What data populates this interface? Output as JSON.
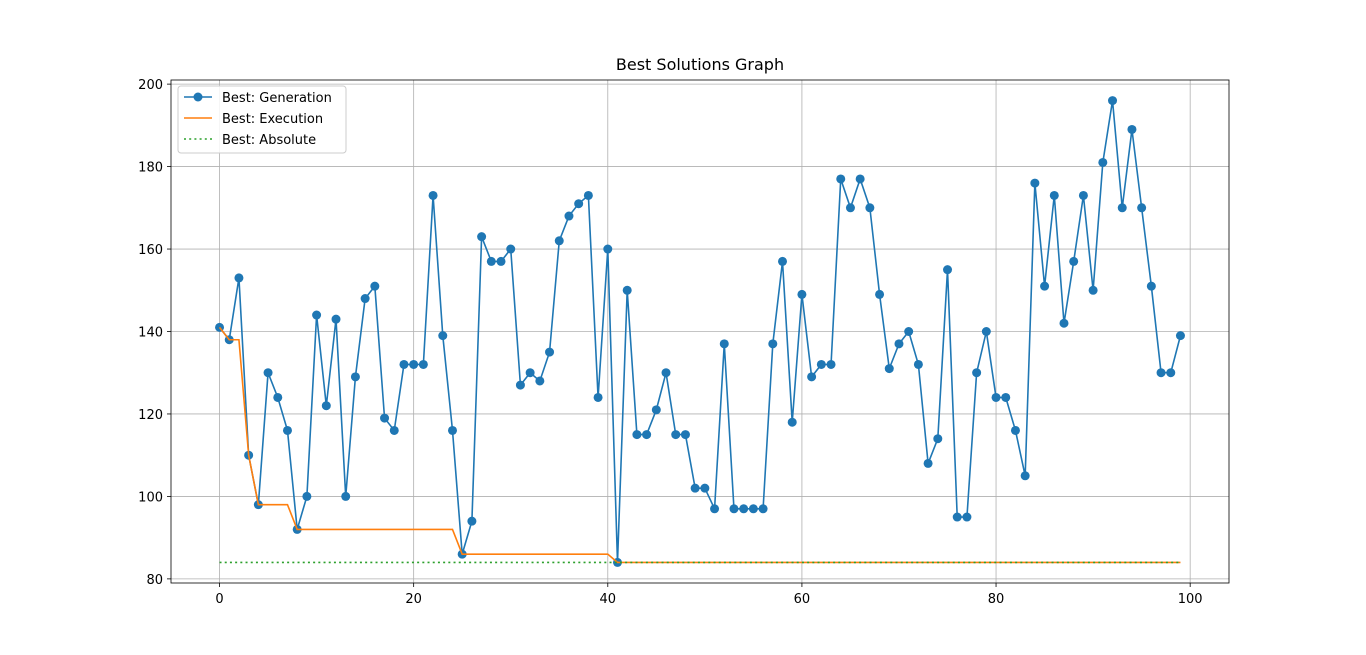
{
  "chart_data": {
    "type": "line",
    "title": "Best Solutions Graph",
    "xlabel": "",
    "ylabel": "",
    "xlim": [
      -5,
      104
    ],
    "ylim": [
      79,
      201
    ],
    "x_ticks": [
      0,
      20,
      40,
      60,
      80,
      100
    ],
    "y_ticks": [
      80,
      100,
      120,
      140,
      160,
      180,
      200
    ],
    "grid": true,
    "legend_position": "upper-left",
    "series": [
      {
        "name": "Best: Generation",
        "color": "#1f77b4",
        "style": "solid",
        "marker": "circle",
        "x_start": 0,
        "values": [
          141,
          138,
          153,
          110,
          98,
          130,
          124,
          116,
          92,
          100,
          144,
          122,
          143,
          100,
          129,
          148,
          151,
          119,
          116,
          132,
          132,
          132,
          173,
          139,
          116,
          86,
          94,
          163,
          157,
          157,
          160,
          127,
          130,
          128,
          135,
          162,
          168,
          171,
          173,
          124,
          160,
          84,
          150,
          115,
          115,
          121,
          130,
          115,
          115,
          102,
          102,
          97,
          137,
          97,
          97,
          97,
          97,
          137,
          157,
          118,
          149,
          129,
          132,
          132,
          177,
          170,
          177,
          170,
          149,
          131,
          137,
          140,
          132,
          108,
          114,
          155,
          95,
          95,
          130,
          140,
          124,
          124,
          116,
          105,
          176,
          151,
          173,
          142,
          157,
          173,
          150,
          181,
          196,
          170,
          189,
          170,
          151,
          130,
          130,
          139
        ]
      },
      {
        "name": "Best: Execution",
        "color": "#ff7f0e",
        "style": "solid",
        "marker": "none",
        "x_start": 0,
        "values": [
          141,
          138,
          138,
          110,
          98,
          98,
          98,
          98,
          92,
          92,
          92,
          92,
          92,
          92,
          92,
          92,
          92,
          92,
          92,
          92,
          92,
          92,
          92,
          92,
          92,
          86,
          86,
          86,
          86,
          86,
          86,
          86,
          86,
          86,
          86,
          86,
          86,
          86,
          86,
          86,
          86,
          84,
          84,
          84,
          84,
          84,
          84,
          84,
          84,
          84,
          84,
          84,
          84,
          84,
          84,
          84,
          84,
          84,
          84,
          84,
          84,
          84,
          84,
          84,
          84,
          84,
          84,
          84,
          84,
          84,
          84,
          84,
          84,
          84,
          84,
          84,
          84,
          84,
          84,
          84,
          84,
          84,
          84,
          84,
          84,
          84,
          84,
          84,
          84,
          84,
          84,
          84,
          84,
          84,
          84,
          84,
          84,
          84,
          84,
          84
        ]
      },
      {
        "name": "Best: Absolute",
        "color": "#2ca02c",
        "style": "dotted",
        "marker": "none",
        "x_range": [
          0,
          99
        ],
        "constant": 84
      }
    ]
  }
}
